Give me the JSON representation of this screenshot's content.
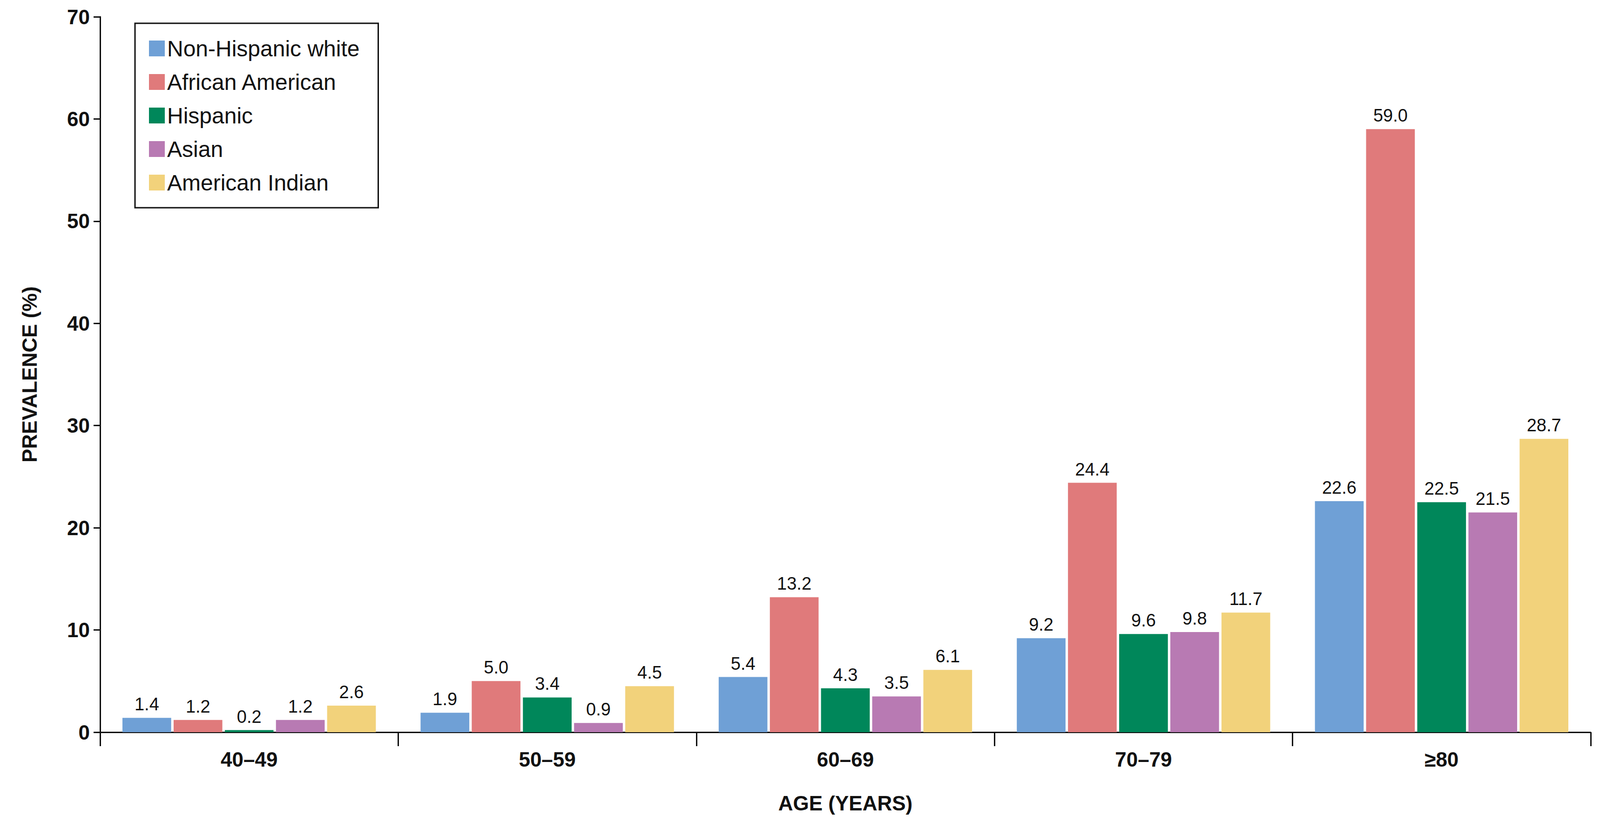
{
  "chart_data": {
    "type": "bar",
    "x_label": "AGE (YEARS)",
    "y_label": "PREVALENCE (%)",
    "categories": [
      "40–49",
      "50–59",
      "60–69",
      "70–79",
      "≥80"
    ],
    "series": [
      {
        "name": "Non-Hispanic white",
        "color": "#6fa0d6",
        "values": [
          1.4,
          1.9,
          5.4,
          9.2,
          22.6
        ],
        "value_labels": [
          "1.4",
          "1.9",
          "5.4",
          "9.2",
          "22.6"
        ]
      },
      {
        "name": "African American",
        "color": "#e07a7b",
        "values": [
          1.2,
          5.0,
          13.2,
          24.4,
          59.0
        ],
        "value_labels": [
          "1.2",
          "5.0",
          "13.2",
          "24.4",
          "59.0"
        ]
      },
      {
        "name": "Hispanic",
        "color": "#00875a",
        "values": [
          0.2,
          3.4,
          4.3,
          9.6,
          22.5
        ],
        "value_labels": [
          "0.2",
          "3.4",
          "4.3",
          "9.6",
          "22.5"
        ]
      },
      {
        "name": "Asian",
        "color": "#b87ab3",
        "values": [
          1.2,
          0.9,
          3.5,
          9.8,
          21.5
        ],
        "value_labels": [
          "1.2",
          "0.9",
          "3.5",
          "9.8",
          "21.5"
        ]
      },
      {
        "name": "American Indian",
        "color": "#f2d27b",
        "values": [
          2.6,
          4.5,
          6.1,
          11.7,
          28.7
        ],
        "value_labels": [
          "2.6",
          "4.5",
          "6.1",
          "11.7",
          "28.7"
        ]
      }
    ],
    "ylim": [
      0,
      70
    ],
    "yticks": [
      0,
      10,
      20,
      30,
      40,
      50,
      60,
      70
    ],
    "grid": false,
    "legend": "upper left",
    "data_labels": true
  }
}
